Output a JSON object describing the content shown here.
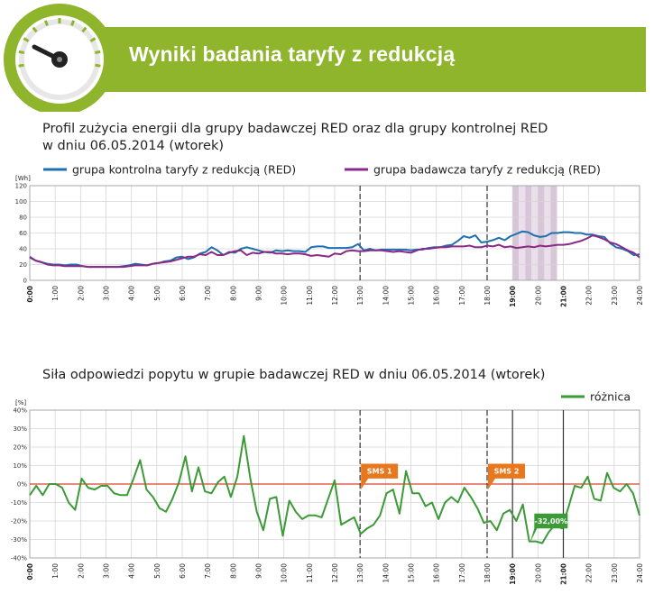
{
  "header": {
    "title": "Wyniki badania taryfy z redukcją"
  },
  "colors": {
    "header_green": "#8fb52d",
    "series_blue": "#1f6fb0",
    "series_purple": "#8a2a86",
    "diff_green": "#3c9a37",
    "sms_orange": "#e8771e",
    "zero_line": "#d9442a",
    "shade": "#d7c6d7"
  },
  "chart_data": [
    {
      "type": "line",
      "title": "Profil zużycia energii dla grupy badawczej RED oraz dla grupy kontrolnej RED",
      "subtitle": "w dniu 06.05.2014 (wtorek)",
      "ylabel": "[Wh]",
      "ylim": [
        0,
        120
      ],
      "yticks": [
        "0",
        "20",
        "40",
        "60",
        "80",
        "100",
        "120"
      ],
      "xlim": [
        0,
        24
      ],
      "xticks": [
        "0:00",
        "1:00",
        "2:00",
        "3:00",
        "4:00",
        "5:00",
        "6:00",
        "7:00",
        "8:00",
        "9:00",
        "10:00",
        "11:00",
        "12:00",
        "13:00",
        "14:00",
        "15:00",
        "16:00",
        "17:00",
        "18:00",
        "19:00",
        "20:00",
        "21:00",
        "22:00",
        "23:00",
        "24:00"
      ],
      "bold_ticks": [
        0,
        19,
        21
      ],
      "dashed_vlines": [
        13,
        18
      ],
      "shaded_band": [
        19,
        20.75
      ],
      "grid": true,
      "legend_position": "top",
      "series": [
        {
          "name": "grupa kontrolna taryfy z redukcją (RED)",
          "values": [
            30,
            25,
            23,
            21,
            20,
            20,
            19,
            20,
            20,
            18,
            17,
            17,
            17,
            17,
            17,
            17,
            18,
            19,
            21,
            20,
            19,
            21,
            22,
            24,
            25,
            29,
            30,
            27,
            29,
            34,
            36,
            42,
            38,
            32,
            36,
            35,
            40,
            42,
            40,
            38,
            36,
            35,
            38,
            37,
            38,
            37,
            37,
            36,
            42,
            43,
            43,
            41,
            41,
            41,
            41,
            42,
            46,
            38,
            40,
            38,
            39,
            39,
            39,
            39,
            39,
            38,
            39,
            39,
            41,
            42,
            42,
            44,
            45,
            50,
            56,
            54,
            57,
            48,
            49,
            51,
            54,
            51,
            56,
            59,
            62,
            61,
            57,
            55,
            56,
            60,
            60,
            61,
            61,
            60,
            60,
            58,
            58,
            56,
            55,
            47,
            42,
            40,
            37,
            32,
            33
          ]
        },
        {
          "name": "grupa badawcza taryfy z redukcją (RED)",
          "values": [
            29,
            25,
            23,
            20,
            19,
            19,
            18,
            18,
            18,
            18,
            17,
            17,
            17,
            17,
            17,
            17,
            17,
            18,
            19,
            19,
            19,
            21,
            22,
            23,
            24,
            26,
            28,
            30,
            30,
            33,
            32,
            36,
            32,
            32,
            35,
            37,
            38,
            32,
            35,
            34,
            36,
            36,
            34,
            34,
            33,
            34,
            34,
            33,
            31,
            32,
            31,
            30,
            34,
            33,
            37,
            38,
            37,
            37,
            38,
            38,
            38,
            37,
            36,
            37,
            36,
            35,
            38,
            40,
            40,
            41,
            42,
            42,
            43,
            43,
            43,
            44,
            42,
            42,
            44,
            43,
            45,
            42,
            43,
            41,
            42,
            43,
            42,
            44,
            43,
            44,
            45,
            45,
            46,
            48,
            50,
            53,
            57,
            55,
            52,
            48,
            46,
            42,
            38,
            35,
            29
          ]
        }
      ]
    },
    {
      "type": "line",
      "title": "Siła odpowiedzi popytu w grupie badawczej RED w dniu 06.05.2014 (wtorek)",
      "ylabel": "[%]",
      "ylim": [
        -40,
        40
      ],
      "yticks": [
        "-40%",
        "-30%",
        "-20%",
        "-10%",
        "0%",
        "10%",
        "20%",
        "30%",
        "40%"
      ],
      "xlim": [
        0,
        24
      ],
      "xticks": [
        "0:00",
        "1:00",
        "2:00",
        "3:00",
        "4:00",
        "5:00",
        "6:00",
        "7:00",
        "8:00",
        "9:00",
        "10:00",
        "11:00",
        "12:00",
        "13:00",
        "14:00",
        "15:00",
        "16:00",
        "17:00",
        "18:00",
        "19:00",
        "20:00",
        "21:00",
        "22:00",
        "23:00",
        "24:00"
      ],
      "bold_ticks": [
        0,
        19,
        21
      ],
      "dashed_vlines": [
        13,
        18
      ],
      "solid_vlines": [
        19,
        21
      ],
      "grid": true,
      "legend_position": "top-right",
      "series": [
        {
          "name": "różnica",
          "values": [
            -6,
            -1,
            -6,
            0,
            0,
            -2,
            -10,
            -14,
            3,
            -2,
            -3,
            -1,
            -1,
            -5,
            -6,
            -6,
            3,
            13,
            -3,
            -7,
            -13,
            -15,
            -8,
            1,
            15,
            -4,
            9,
            -4,
            -5,
            1,
            4,
            -7,
            4,
            26,
            3,
            -15,
            -25,
            -8,
            -7,
            -28,
            -9,
            -15,
            -19,
            -17,
            -17,
            -18,
            -8,
            2,
            -22,
            -20,
            -18,
            -27,
            -24,
            -22,
            -17,
            -5,
            -3,
            -16,
            7,
            -5,
            -5,
            -12,
            -10,
            -19,
            -10,
            -7,
            -10,
            -2,
            -7,
            -13,
            -21,
            -20,
            -25,
            -16,
            -14,
            -20,
            -11,
            -31,
            -31,
            -32,
            -26,
            -22,
            -24,
            -13,
            -1,
            -2,
            4,
            -8,
            -9,
            6,
            -2,
            -4,
            0,
            -5,
            -17
          ]
        }
      ],
      "annotations": [
        {
          "label": "SMS 1",
          "x": 13
        },
        {
          "label": "SMS 2",
          "x": 18
        },
        {
          "label": "-32,00%",
          "x": 20
        }
      ]
    }
  ]
}
